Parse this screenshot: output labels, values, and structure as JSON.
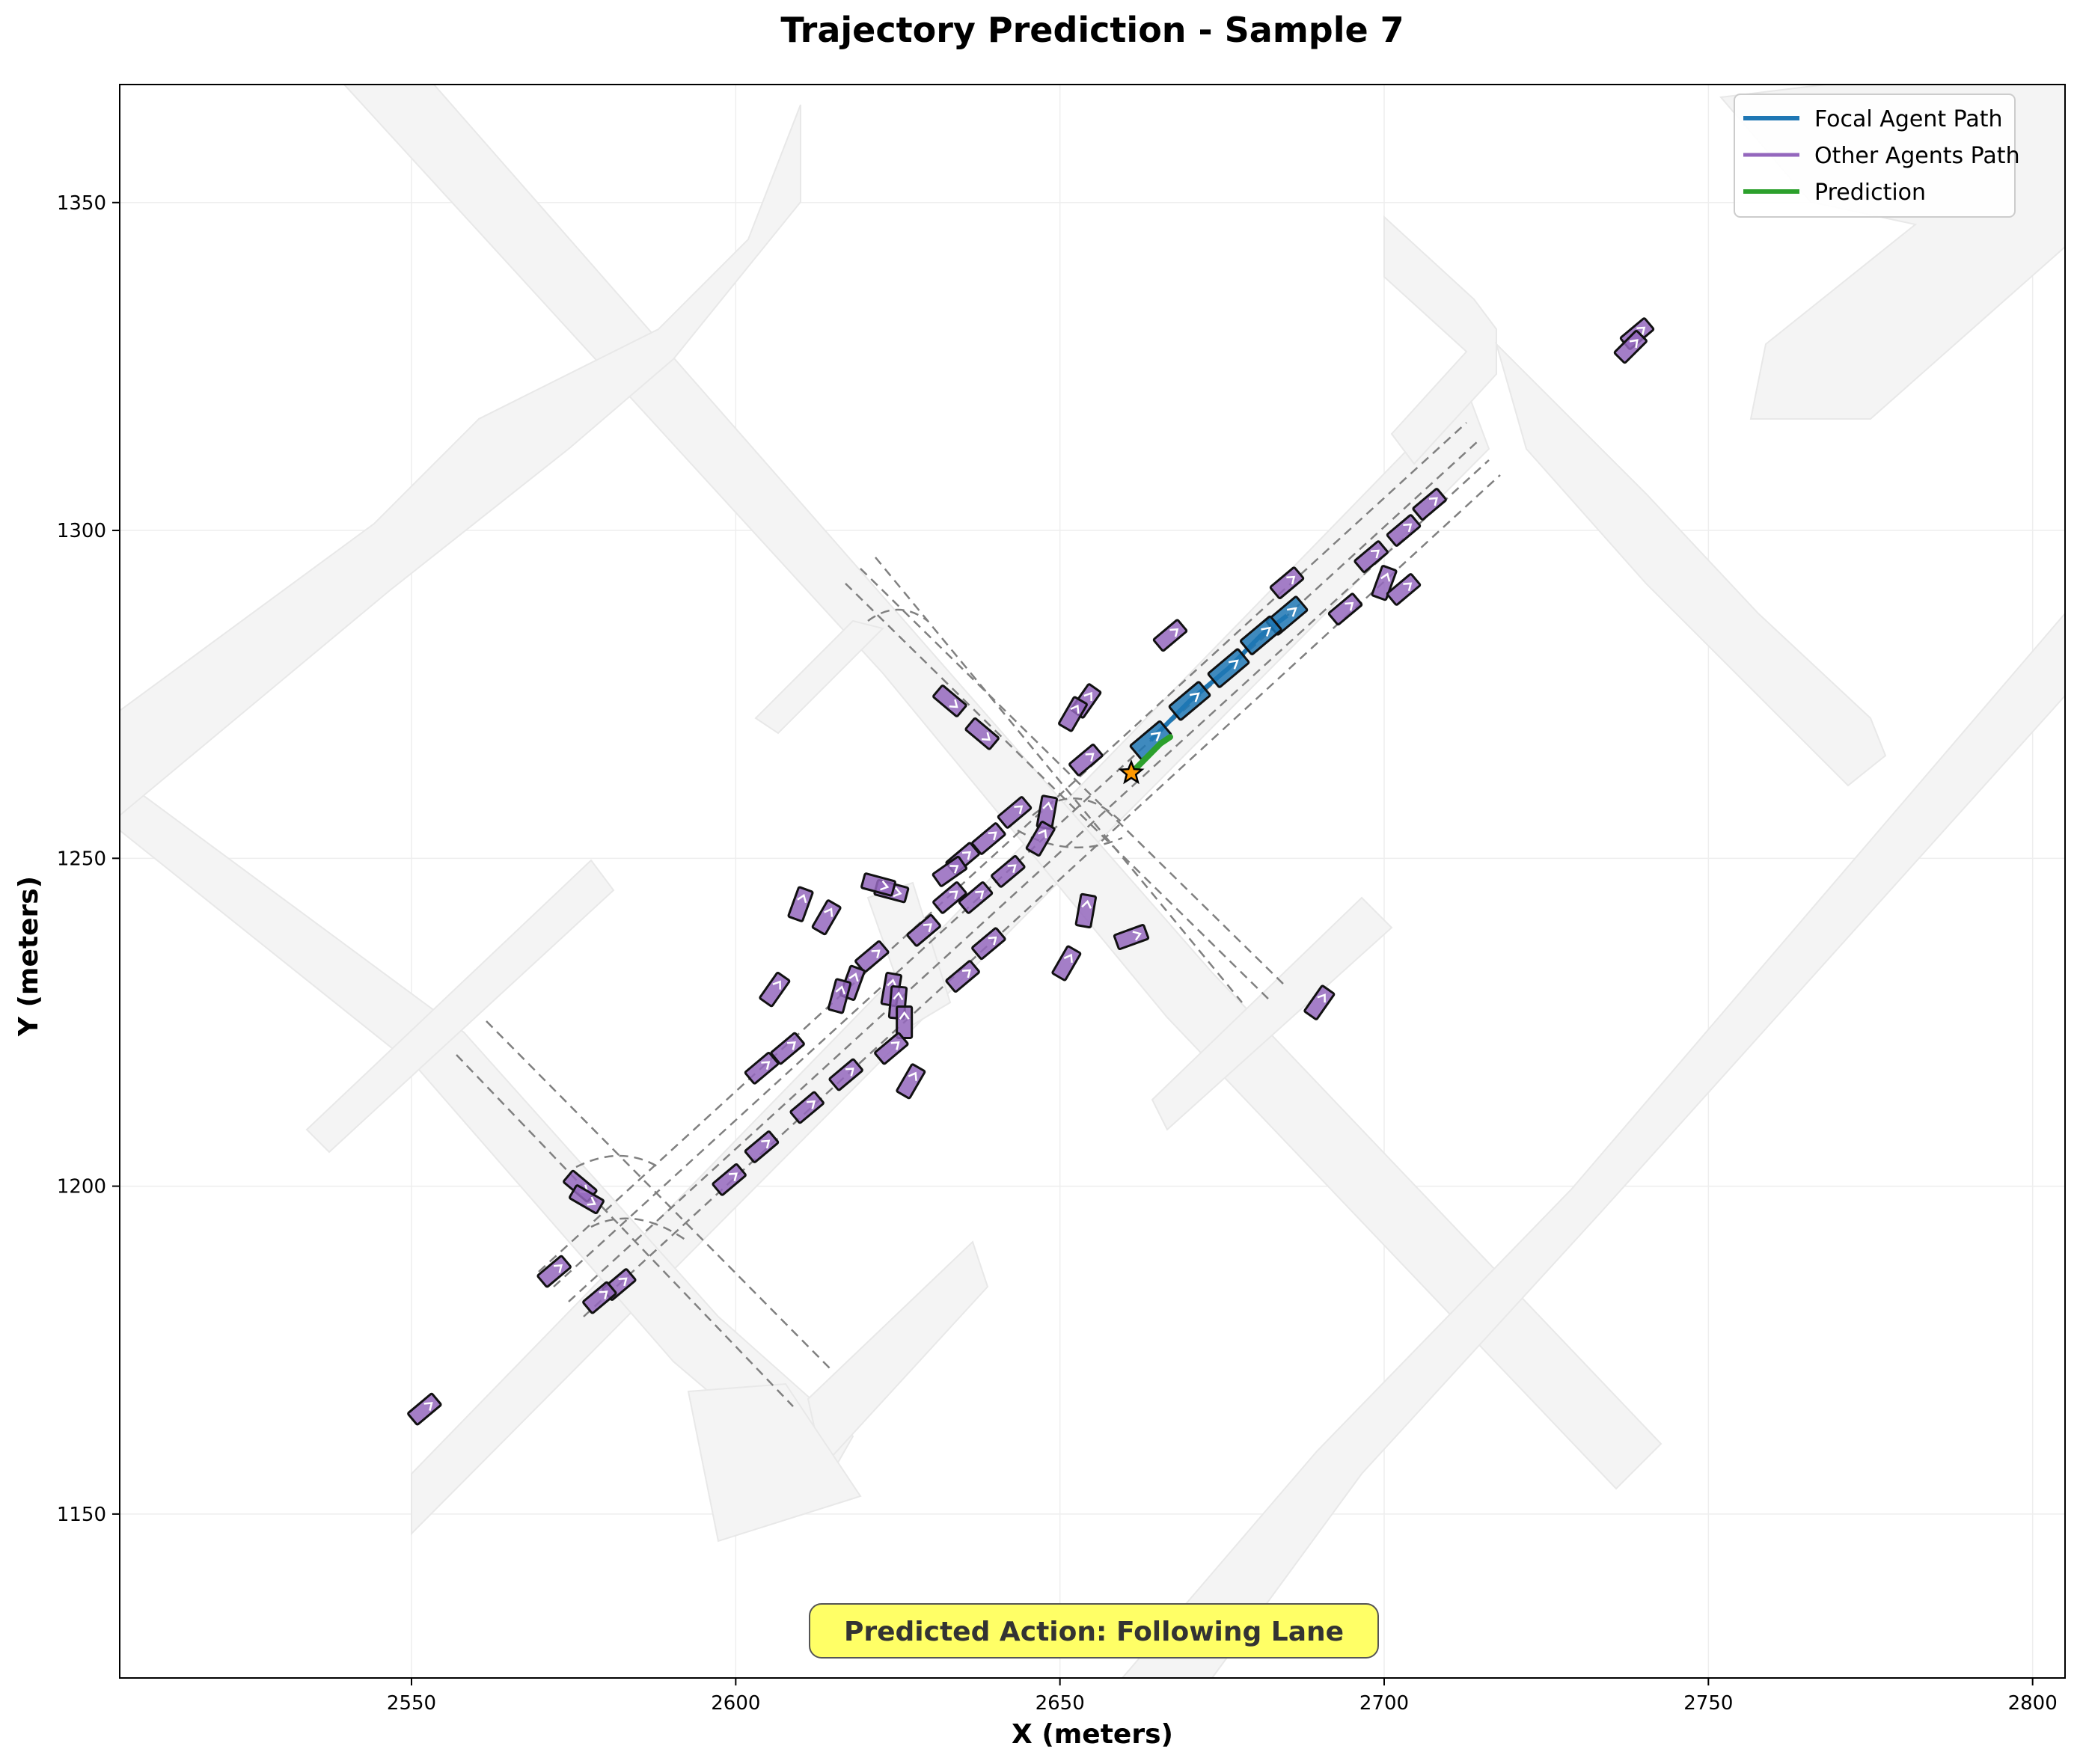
{
  "chart_data": {
    "type": "scatter",
    "title": "Trajectory Prediction - Sample 7",
    "xlabel": "X (meters)",
    "ylabel": "Y (meters)",
    "xlim": [
      2505,
      2805
    ],
    "ylim": [
      1125,
      1368
    ],
    "xticks": [
      2550,
      2600,
      2650,
      2700,
      2750,
      2800
    ],
    "yticks": [
      1150,
      1200,
      1250,
      1300,
      1350
    ],
    "grid": true,
    "legend_position": "top-right",
    "legend": [
      {
        "label": "Focal Agent Path",
        "color": "#1f77b4"
      },
      {
        "label": "Other Agents Path",
        "color": "#9467bd"
      },
      {
        "label": "Prediction",
        "color": "#2ca02c"
      }
    ],
    "annotation": "Predicted Action: Following Lane",
    "road_color": "#f4f4f4",
    "lane_color": "#808080",
    "focal_agent": {
      "color": "#1f77b4",
      "boxes": [
        {
          "x": 2685,
          "y": 1287,
          "heading": 40
        },
        {
          "x": 2681,
          "y": 1284,
          "heading": 40
        },
        {
          "x": 2676,
          "y": 1279,
          "heading": 40
        },
        {
          "x": 2670,
          "y": 1274,
          "heading": 40
        },
        {
          "x": 2664,
          "y": 1268,
          "heading": 40
        }
      ]
    },
    "current_position": {
      "x": 2661,
      "y": 1263
    },
    "prediction": {
      "color": "#2ca02c",
      "x": [
        2661,
        2662.5,
        2664,
        2665.5,
        2667
      ],
      "y": [
        1263,
        1264.5,
        1266,
        1267.5,
        1268.5
      ]
    },
    "other_agents": {
      "color": "#9467bd",
      "boxes": [
        {
          "x": 2739,
          "y": 1330,
          "heading": 40
        },
        {
          "x": 2738,
          "y": 1328,
          "heading": 45
        },
        {
          "x": 2707,
          "y": 1304,
          "heading": 40
        },
        {
          "x": 2703,
          "y": 1300,
          "heading": 40
        },
        {
          "x": 2698,
          "y": 1296,
          "heading": 40
        },
        {
          "x": 2700,
          "y": 1292,
          "heading": 70
        },
        {
          "x": 2703,
          "y": 1291,
          "heading": 40
        },
        {
          "x": 2694,
          "y": 1288,
          "heading": 40
        },
        {
          "x": 2685,
          "y": 1292,
          "heading": 40
        },
        {
          "x": 2667,
          "y": 1284,
          "heading": 40
        },
        {
          "x": 2654,
          "y": 1274,
          "heading": 55
        },
        {
          "x": 2652,
          "y": 1272,
          "heading": 60
        },
        {
          "x": 2654,
          "y": 1265,
          "heading": 40
        },
        {
          "x": 2633,
          "y": 1274,
          "heading": -40
        },
        {
          "x": 2638,
          "y": 1269,
          "heading": -40
        },
        {
          "x": 2643,
          "y": 1257,
          "heading": 40
        },
        {
          "x": 2639,
          "y": 1253,
          "heading": 40
        },
        {
          "x": 2635,
          "y": 1250,
          "heading": 40
        },
        {
          "x": 2633,
          "y": 1248,
          "heading": 35
        },
        {
          "x": 2648,
          "y": 1257,
          "heading": 80
        },
        {
          "x": 2647,
          "y": 1253,
          "heading": 60
        },
        {
          "x": 2642,
          "y": 1248,
          "heading": 40
        },
        {
          "x": 2637,
          "y": 1244,
          "heading": 40
        },
        {
          "x": 2633,
          "y": 1244,
          "heading": 40
        },
        {
          "x": 2624,
          "y": 1245,
          "heading": -15
        },
        {
          "x": 2622,
          "y": 1246,
          "heading": -15
        },
        {
          "x": 2610,
          "y": 1243,
          "heading": 70
        },
        {
          "x": 2614,
          "y": 1241,
          "heading": 60
        },
        {
          "x": 2629,
          "y": 1239,
          "heading": 40
        },
        {
          "x": 2654,
          "y": 1242,
          "heading": 80
        },
        {
          "x": 2661,
          "y": 1238,
          "heading": 20
        },
        {
          "x": 2639,
          "y": 1237,
          "heading": 40
        },
        {
          "x": 2651,
          "y": 1234,
          "heading": 60
        },
        {
          "x": 2635,
          "y": 1232,
          "heading": 40
        },
        {
          "x": 2621,
          "y": 1235,
          "heading": 40
        },
        {
          "x": 2618,
          "y": 1231,
          "heading": 70
        },
        {
          "x": 2616,
          "y": 1229,
          "heading": 75
        },
        {
          "x": 2624,
          "y": 1230,
          "heading": 80
        },
        {
          "x": 2625,
          "y": 1228,
          "heading": 85
        },
        {
          "x": 2626,
          "y": 1225,
          "heading": 90
        },
        {
          "x": 2606,
          "y": 1230,
          "heading": 55
        },
        {
          "x": 2690,
          "y": 1228,
          "heading": 55
        },
        {
          "x": 2624,
          "y": 1221,
          "heading": 40
        },
        {
          "x": 2608,
          "y": 1221,
          "heading": 40
        },
        {
          "x": 2604,
          "y": 1218,
          "heading": 40
        },
        {
          "x": 2617,
          "y": 1217,
          "heading": 40
        },
        {
          "x": 2627,
          "y": 1216,
          "heading": 60
        },
        {
          "x": 2611,
          "y": 1212,
          "heading": 40
        },
        {
          "x": 2604,
          "y": 1206,
          "heading": 40
        },
        {
          "x": 2599,
          "y": 1201,
          "heading": 40
        },
        {
          "x": 2576,
          "y": 1200,
          "heading": -40
        },
        {
          "x": 2577,
          "y": 1198,
          "heading": -30
        },
        {
          "x": 2572,
          "y": 1187,
          "heading": 40
        },
        {
          "x": 2582,
          "y": 1185,
          "heading": 40
        },
        {
          "x": 2579,
          "y": 1183,
          "heading": 40
        },
        {
          "x": 2552,
          "y": 1166,
          "heading": 40
        }
      ]
    }
  }
}
